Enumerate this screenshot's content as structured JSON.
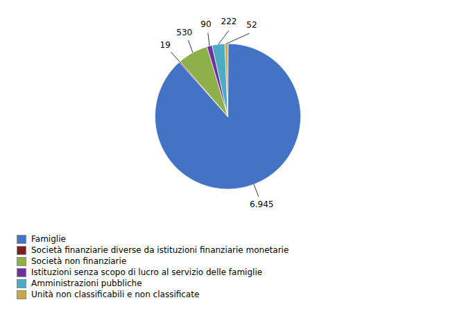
{
  "chart_data": {
    "type": "pie",
    "categories": [
      "Famiglie",
      "Società finanziarie diverse da istituzioni finanziarie monetarie",
      "Società non finanziarie",
      "Istituzioni senza scopo di lucro al servizio delle famiglie",
      "Amministrazioni pubbliche",
      "Unità non classificabili e non classificate"
    ],
    "values": [
      6945,
      19,
      530,
      90,
      222,
      52
    ],
    "value_labels": [
      "6.945",
      "19",
      "530",
      "90",
      "222",
      "52"
    ],
    "colors": [
      "#4472C4",
      "#7B2020",
      "#8DB04B",
      "#7030A0",
      "#4BACC6",
      "#C9A84C"
    ],
    "data_labels": true,
    "legend": "lower left"
  }
}
